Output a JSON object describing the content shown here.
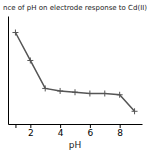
{
  "chart_data": {
    "type": "line",
    "title": "nce of pH on electrode response to Cd(II)",
    "xlabel": "pH",
    "x": [
      1,
      2,
      3,
      4,
      5,
      6,
      7,
      8,
      9
    ],
    "values": [
      0.82,
      0.6,
      0.38,
      0.36,
      0.35,
      0.34,
      0.34,
      0.33,
      0.2
    ],
    "color": "#555555",
    "marker": "plus",
    "xlim": [
      0.5,
      9.5
    ],
    "ylim": [
      0.1,
      0.95
    ],
    "xticks": [
      {
        "value": 1,
        "label": null
      },
      2,
      4,
      6,
      8
    ],
    "tick_labels": "x",
    "grid": false
  }
}
